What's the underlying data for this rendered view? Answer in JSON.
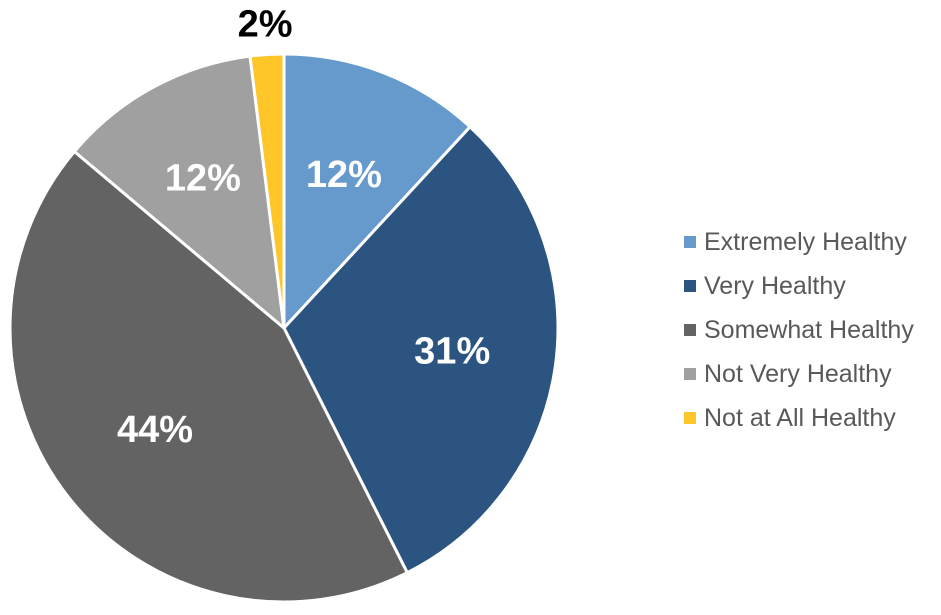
{
  "chart_data": {
    "type": "pie",
    "title": "",
    "legend_position": "right",
    "categories": [
      "Extremely Healthy",
      "Very Healthy",
      "Somewhat Healthy",
      "Not Very Healthy",
      "Not at All Healthy"
    ],
    "values": [
      12,
      31,
      44,
      12,
      2
    ],
    "labels": [
      "12%",
      "31%",
      "44%",
      "12%",
      "2%"
    ],
    "colors": [
      "#6699CC",
      "#2B5480",
      "#636363",
      "#A0A0A0",
      "#FFC629"
    ],
    "label_colors": [
      "#FFFFFF",
      "#FFFFFF",
      "#FFFFFF",
      "#FFFFFF",
      "#000000"
    ],
    "start_angle_deg": 0,
    "direction": "clockwise"
  }
}
